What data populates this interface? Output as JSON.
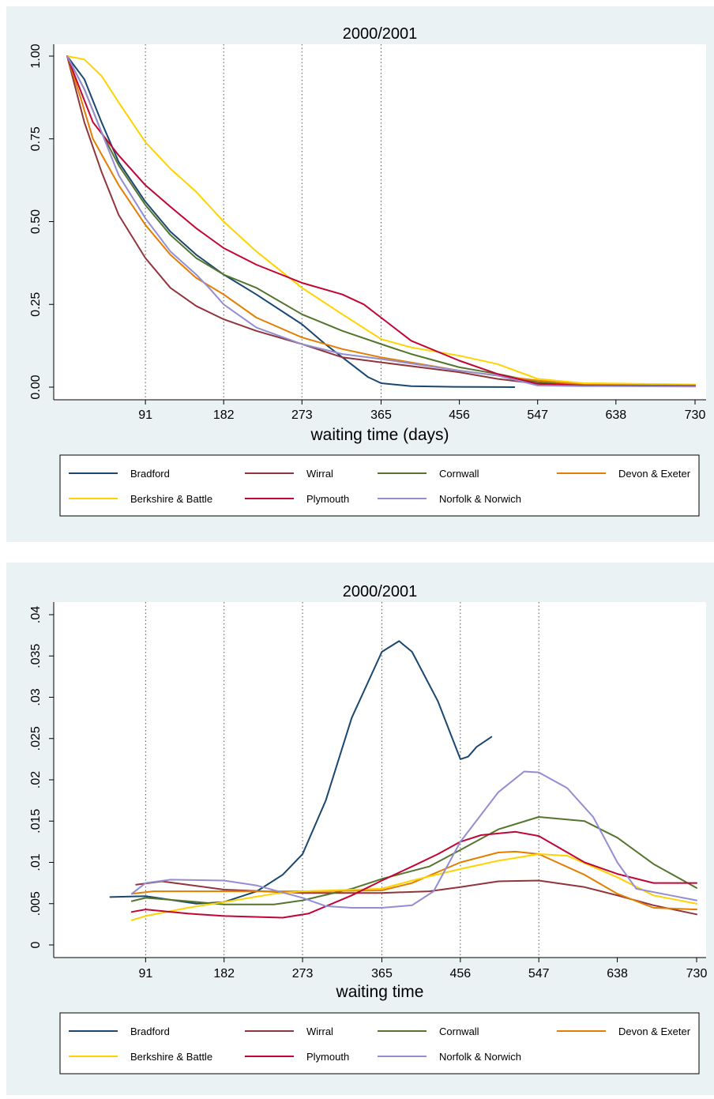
{
  "chart_data": [
    {
      "type": "line",
      "title": "2000/2001",
      "xlabel": "waiting time (days)",
      "ylabel": "",
      "xlim": [
        0,
        730
      ],
      "ylim": [
        0,
        1
      ],
      "x_ticks": [
        "91",
        "182",
        "273",
        "365",
        "456",
        "547",
        "638",
        "730"
      ],
      "y_ticks": [
        "0.00",
        "0.25",
        "0.50",
        "0.75",
        "1.00"
      ],
      "reference_lines_x": [
        91,
        182,
        273,
        365
      ],
      "legend_position": "bottom",
      "series": [
        {
          "name": "Bradford",
          "color": "#1a476f",
          "points": [
            [
              0,
              1.0
            ],
            [
              20,
              0.93
            ],
            [
              40,
              0.8
            ],
            [
              60,
              0.68
            ],
            [
              91,
              0.56
            ],
            [
              120,
              0.47
            ],
            [
              150,
              0.4
            ],
            [
              182,
              0.34
            ],
            [
              220,
              0.28
            ],
            [
              273,
              0.19
            ],
            [
              300,
              0.13
            ],
            [
              330,
              0.07
            ],
            [
              350,
              0.03
            ],
            [
              365,
              0.012
            ],
            [
              400,
              0.003
            ],
            [
              450,
              0.001
            ],
            [
              520,
              0.0
            ]
          ]
        },
        {
          "name": "Wirral",
          "color": "#90353b",
          "points": [
            [
              0,
              1.0
            ],
            [
              10,
              0.9
            ],
            [
              20,
              0.8
            ],
            [
              40,
              0.65
            ],
            [
              60,
              0.52
            ],
            [
              91,
              0.39
            ],
            [
              120,
              0.3
            ],
            [
              150,
              0.245
            ],
            [
              182,
              0.205
            ],
            [
              220,
              0.17
            ],
            [
              273,
              0.13
            ],
            [
              320,
              0.09
            ],
            [
              365,
              0.075
            ],
            [
              456,
              0.045
            ],
            [
              500,
              0.025
            ],
            [
              547,
              0.01
            ],
            [
              600,
              0.005
            ],
            [
              730,
              0.004
            ]
          ]
        },
        {
          "name": "Cornwall",
          "color": "#55752f",
          "points": [
            [
              0,
              1.0
            ],
            [
              20,
              0.9
            ],
            [
              40,
              0.77
            ],
            [
              60,
              0.67
            ],
            [
              91,
              0.55
            ],
            [
              120,
              0.46
            ],
            [
              150,
              0.39
            ],
            [
              182,
              0.34
            ],
            [
              220,
              0.3
            ],
            [
              273,
              0.22
            ],
            [
              320,
              0.17
            ],
            [
              365,
              0.13
            ],
            [
              400,
              0.1
            ],
            [
              456,
              0.06
            ],
            [
              500,
              0.04
            ],
            [
              547,
              0.015
            ],
            [
              600,
              0.007
            ],
            [
              730,
              0.005
            ]
          ]
        },
        {
          "name": "Devon & Exeter",
          "color": "#e37e00",
          "points": [
            [
              0,
              1.0
            ],
            [
              15,
              0.88
            ],
            [
              30,
              0.75
            ],
            [
              60,
              0.61
            ],
            [
              91,
              0.49
            ],
            [
              120,
              0.4
            ],
            [
              150,
              0.33
            ],
            [
              182,
              0.28
            ],
            [
              220,
              0.21
            ],
            [
              273,
              0.15
            ],
            [
              320,
              0.115
            ],
            [
              365,
              0.09
            ],
            [
              456,
              0.05
            ],
            [
              500,
              0.035
            ],
            [
              547,
              0.02
            ],
            [
              600,
              0.008
            ],
            [
              730,
              0.005
            ]
          ]
        },
        {
          "name": "Berkshire & Battle",
          "color": "#ffd200",
          "points": [
            [
              0,
              1.0
            ],
            [
              20,
              0.99
            ],
            [
              40,
              0.94
            ],
            [
              60,
              0.86
            ],
            [
              91,
              0.74
            ],
            [
              120,
              0.66
            ],
            [
              150,
              0.59
            ],
            [
              182,
              0.5
            ],
            [
              220,
              0.41
            ],
            [
              273,
              0.3
            ],
            [
              320,
              0.22
            ],
            [
              365,
              0.145
            ],
            [
              400,
              0.12
            ],
            [
              456,
              0.095
            ],
            [
              500,
              0.07
            ],
            [
              547,
              0.025
            ],
            [
              600,
              0.012
            ],
            [
              730,
              0.008
            ]
          ]
        },
        {
          "name": "Plymouth",
          "color": "#c10534",
          "points": [
            [
              0,
              1.0
            ],
            [
              15,
              0.9
            ],
            [
              30,
              0.8
            ],
            [
              60,
              0.7
            ],
            [
              91,
              0.61
            ],
            [
              120,
              0.545
            ],
            [
              150,
              0.48
            ],
            [
              182,
              0.42
            ],
            [
              220,
              0.37
            ],
            [
              273,
              0.315
            ],
            [
              320,
              0.28
            ],
            [
              345,
              0.25
            ],
            [
              365,
              0.21
            ],
            [
              400,
              0.14
            ],
            [
              456,
              0.08
            ],
            [
              500,
              0.04
            ],
            [
              547,
              0.01
            ],
            [
              600,
              0.005
            ],
            [
              730,
              0.004
            ]
          ]
        },
        {
          "name": "Norfolk & Norwich",
          "color": "#938dd2",
          "points": [
            [
              0,
              1.0
            ],
            [
              20,
              0.9
            ],
            [
              40,
              0.77
            ],
            [
              60,
              0.64
            ],
            [
              91,
              0.51
            ],
            [
              120,
              0.41
            ],
            [
              150,
              0.34
            ],
            [
              165,
              0.3
            ],
            [
              182,
              0.25
            ],
            [
              220,
              0.18
            ],
            [
              273,
              0.13
            ],
            [
              320,
              0.1
            ],
            [
              365,
              0.085
            ],
            [
              456,
              0.05
            ],
            [
              500,
              0.035
            ],
            [
              547,
              0.005
            ],
            [
              600,
              0.003
            ],
            [
              730,
              0.002
            ]
          ]
        }
      ]
    },
    {
      "type": "line",
      "title": "2000/2001",
      "xlabel": "waiting time",
      "ylabel": "",
      "xlim": [
        0,
        730
      ],
      "ylim": [
        0,
        0.04
      ],
      "x_ticks": [
        "91",
        "182",
        "273",
        "365",
        "456",
        "547",
        "638",
        "730"
      ],
      "y_ticks": [
        "0",
        ".005",
        ".01",
        ".015",
        ".02",
        ".025",
        ".03",
        ".035",
        ".04"
      ],
      "reference_lines_x": [
        91,
        182,
        273,
        365,
        456,
        547
      ],
      "legend_position": "bottom",
      "series": [
        {
          "name": "Bradford",
          "color": "#1a476f",
          "points": [
            [
              50,
              0.0058
            ],
            [
              91,
              0.0059
            ],
            [
              150,
              0.005
            ],
            [
              182,
              0.0052
            ],
            [
              220,
              0.0065
            ],
            [
              250,
              0.0085
            ],
            [
              273,
              0.011
            ],
            [
              300,
              0.0175
            ],
            [
              330,
              0.0275
            ],
            [
              365,
              0.0355
            ],
            [
              385,
              0.0368
            ],
            [
              400,
              0.0355
            ],
            [
              430,
              0.0295
            ],
            [
              456,
              0.0225
            ],
            [
              465,
              0.0228
            ],
            [
              475,
              0.024
            ],
            [
              492,
              0.0252
            ]
          ]
        },
        {
          "name": "Wirral",
          "color": "#90353b",
          "points": [
            [
              80,
              0.0073
            ],
            [
              110,
              0.0077
            ],
            [
              182,
              0.0067
            ],
            [
              273,
              0.0063
            ],
            [
              365,
              0.0063
            ],
            [
              420,
              0.0065
            ],
            [
              456,
              0.007
            ],
            [
              500,
              0.0077
            ],
            [
              547,
              0.0078
            ],
            [
              600,
              0.007
            ],
            [
              638,
              0.006
            ],
            [
              680,
              0.0048
            ],
            [
              730,
              0.0037
            ]
          ]
        },
        {
          "name": "Cornwall",
          "color": "#55752f",
          "points": [
            [
              75,
              0.0053
            ],
            [
              91,
              0.0057
            ],
            [
              140,
              0.0053
            ],
            [
              182,
              0.0049
            ],
            [
              240,
              0.0049
            ],
            [
              273,
              0.0054
            ],
            [
              330,
              0.0068
            ],
            [
              365,
              0.008
            ],
            [
              420,
              0.0095
            ],
            [
              456,
              0.0115
            ],
            [
              500,
              0.014
            ],
            [
              547,
              0.0155
            ],
            [
              600,
              0.015
            ],
            [
              638,
              0.013
            ],
            [
              680,
              0.0098
            ],
            [
              730,
              0.0069
            ]
          ]
        },
        {
          "name": "Devon & Exeter",
          "color": "#e37e00",
          "points": [
            [
              75,
              0.0062
            ],
            [
              100,
              0.0065
            ],
            [
              182,
              0.0065
            ],
            [
              273,
              0.0065
            ],
            [
              365,
              0.0066
            ],
            [
              400,
              0.0075
            ],
            [
              456,
              0.01
            ],
            [
              500,
              0.0112
            ],
            [
              520,
              0.0113
            ],
            [
              547,
              0.011
            ],
            [
              600,
              0.0085
            ],
            [
              638,
              0.0062
            ],
            [
              680,
              0.0045
            ],
            [
              730,
              0.0043
            ]
          ]
        },
        {
          "name": "Berkshire & Battle",
          "color": "#ffd200",
          "points": [
            [
              75,
              0.003
            ],
            [
              91,
              0.0035
            ],
            [
              140,
              0.0045
            ],
            [
              182,
              0.0052
            ],
            [
              240,
              0.0062
            ],
            [
              273,
              0.0065
            ],
            [
              365,
              0.0068
            ],
            [
              400,
              0.0078
            ],
            [
              456,
              0.0092
            ],
            [
              500,
              0.0102
            ],
            [
              547,
              0.011
            ],
            [
              580,
              0.0108
            ],
            [
              638,
              0.0082
            ],
            [
              680,
              0.006
            ],
            [
              730,
              0.005
            ]
          ]
        },
        {
          "name": "Plymouth",
          "color": "#c10534",
          "points": [
            [
              75,
              0.004
            ],
            [
              91,
              0.0043
            ],
            [
              140,
              0.0038
            ],
            [
              182,
              0.0035
            ],
            [
              250,
              0.0033
            ],
            [
              280,
              0.0038
            ],
            [
              330,
              0.006
            ],
            [
              365,
              0.0078
            ],
            [
              400,
              0.0095
            ],
            [
              430,
              0.011
            ],
            [
              456,
              0.0125
            ],
            [
              480,
              0.0133
            ],
            [
              520,
              0.0137
            ],
            [
              547,
              0.0132
            ],
            [
              600,
              0.01
            ],
            [
              638,
              0.0086
            ],
            [
              680,
              0.0075
            ],
            [
              730,
              0.0075
            ]
          ]
        },
        {
          "name": "Norfolk & Norwich",
          "color": "#938dd2",
          "points": [
            [
              75,
              0.0062
            ],
            [
              91,
              0.0075
            ],
            [
              120,
              0.0079
            ],
            [
              182,
              0.0078
            ],
            [
              220,
              0.0072
            ],
            [
              273,
              0.0057
            ],
            [
              300,
              0.0047
            ],
            [
              330,
              0.0045
            ],
            [
              365,
              0.0045
            ],
            [
              400,
              0.0048
            ],
            [
              425,
              0.0065
            ],
            [
              456,
              0.0125
            ],
            [
              500,
              0.0185
            ],
            [
              530,
              0.021
            ],
            [
              547,
              0.0209
            ],
            [
              580,
              0.019
            ],
            [
              610,
              0.0155
            ],
            [
              638,
              0.01
            ],
            [
              660,
              0.0068
            ],
            [
              700,
              0.006
            ],
            [
              730,
              0.0054
            ]
          ]
        }
      ]
    }
  ]
}
